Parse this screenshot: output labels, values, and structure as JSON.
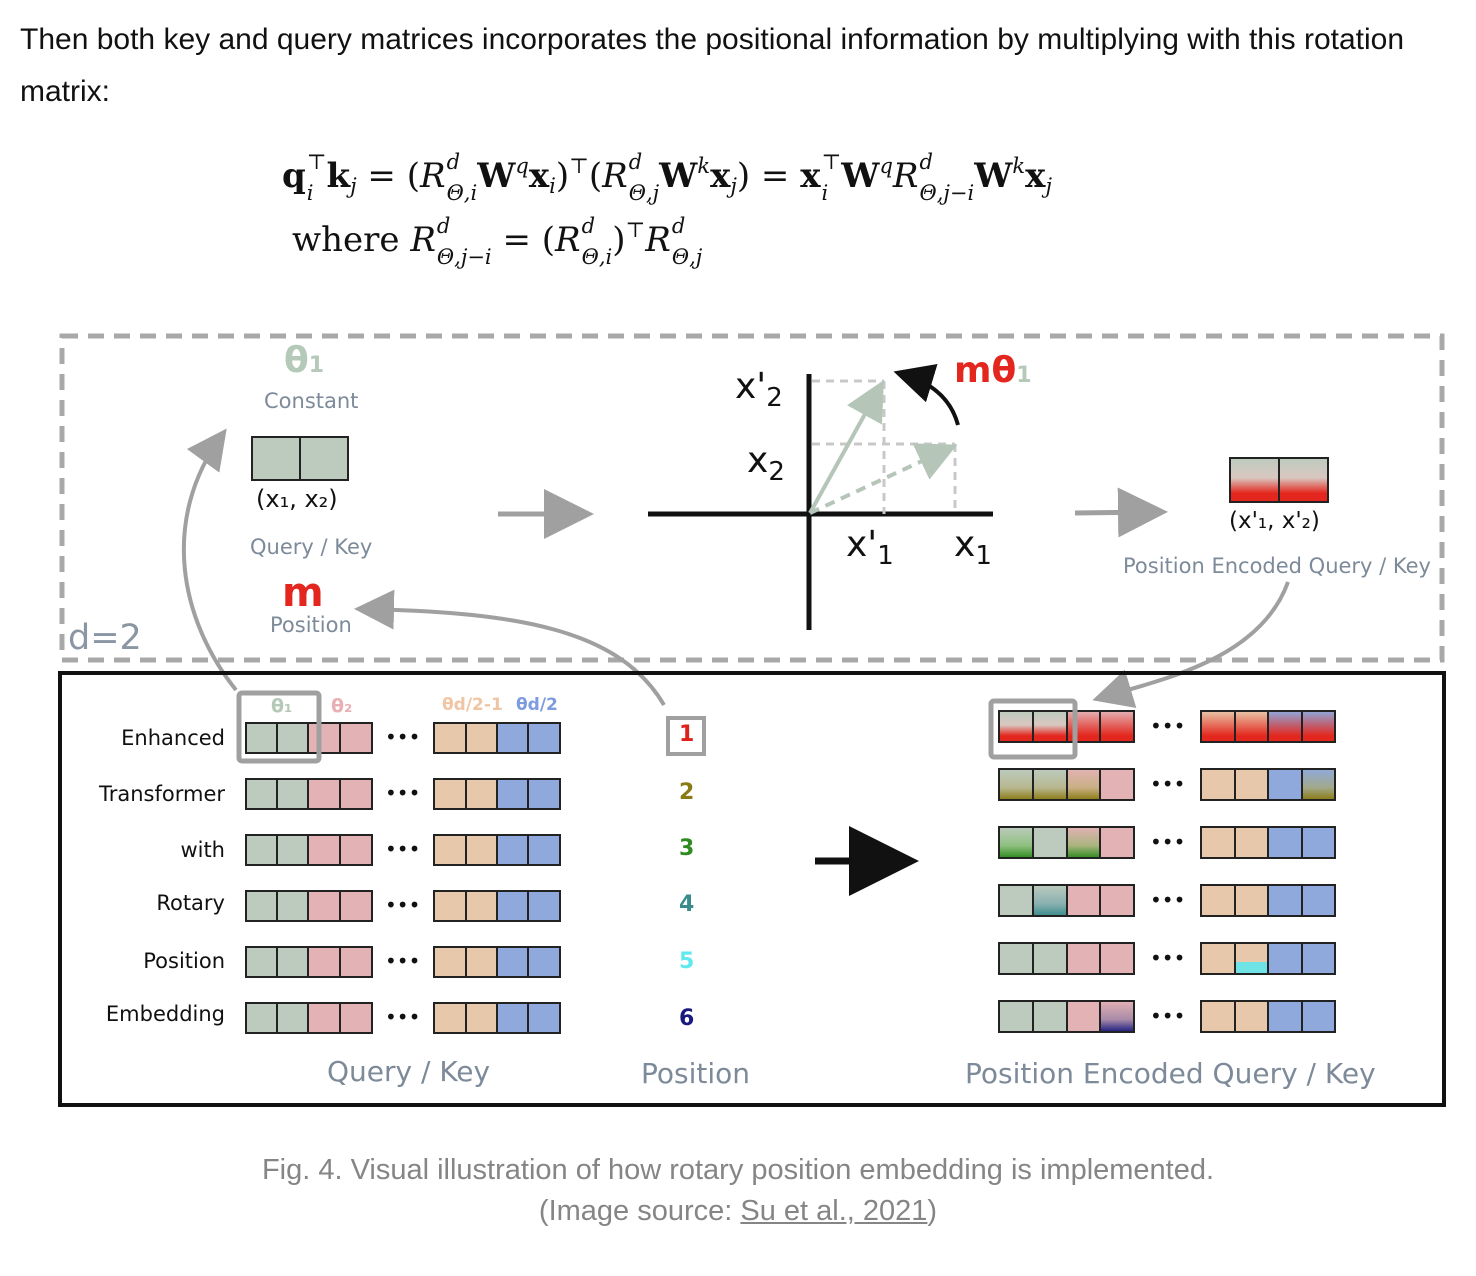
{
  "intro_text": "Then both key and query matrices incorporates the positional information by multiplying with this rotation matrix:",
  "equation": {
    "line1_note": "q_i^T k_j = (R^d_{Θ,i} W^q x_i)^T (R^d_{Θ,j} W^k x_j) = x_i^T W^q R^d_{Θ,j−i} W^k x_j",
    "where_word": "where"
  },
  "figure": {
    "top_panel": {
      "theta1": "θ",
      "theta1_sub": "1",
      "constant_label": "Constant",
      "pair_label": "(x₁, x₂)",
      "query_key_label": "Query / Key",
      "m_symbol": "m",
      "position_label": "Position",
      "d_label": "d=2",
      "x2_prime": "x'",
      "x2_prime_sub": "2",
      "x2": "x",
      "x2_sub": "2",
      "x1_prime": "x'",
      "x1_prime_sub": "1",
      "x1": "x",
      "x1_sub": "1",
      "m_theta": "mθ",
      "m_theta_sub": "1",
      "encoded_pair_label": "(x'₁, x'₂)",
      "encoded_label": "Position Encoded Query / Key"
    },
    "bottom_panel": {
      "row_labels": [
        "Enhanced",
        "Transformer",
        "with",
        "Rotary",
        "Position",
        "Embedding"
      ],
      "theta_headers": [
        "θ₁",
        "θ₂",
        "θd/2-1",
        "θd/2"
      ],
      "ellipsis": "•••",
      "positions": [
        "1",
        "2",
        "3",
        "4",
        "5",
        "6"
      ],
      "position_colors": [
        "#e0201a",
        "#8a7a12",
        "#2e8b1f",
        "#3a8c8c",
        "#5fe8ee",
        "#1a1a7e"
      ],
      "query_key_footer": "Query / Key",
      "position_footer": "Position",
      "encoded_footer": "Position Encoded Query / Key"
    },
    "colors": {
      "green_cell": "#bccbbe",
      "red_cell": "#e3b2b4",
      "tan_cell": "#e8c8aa",
      "blue_cell": "#8fa9dc",
      "accent_red": "#e3271e",
      "label_gray": "#7d8a99"
    }
  },
  "caption": {
    "line1": "Fig. 4. Visual illustration of how rotary position embedding is implemented.",
    "line2_prefix": "(Image source: ",
    "link_text": "Su et al., 2021",
    "line2_suffix": ")"
  }
}
